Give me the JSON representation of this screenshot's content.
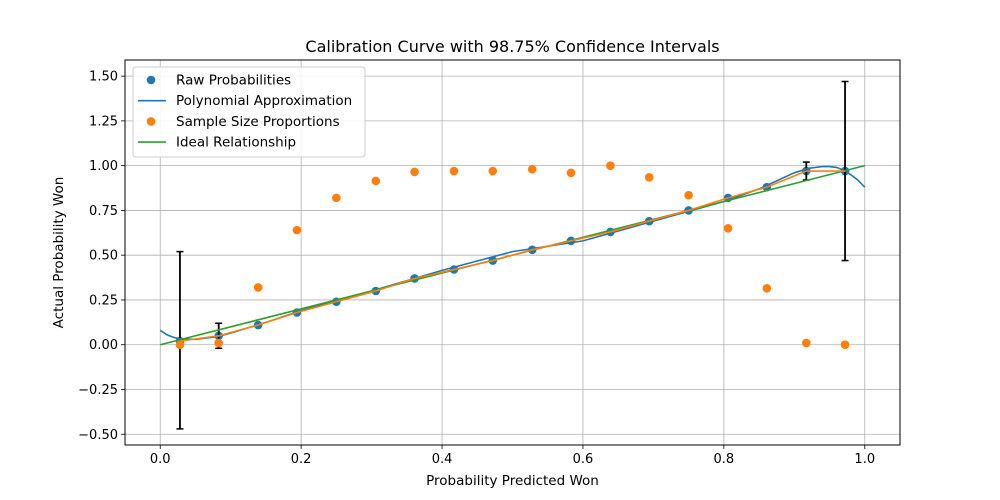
{
  "chart_data": {
    "type": "scatter",
    "title": "Calibration Curve with 98.75% Confidence Intervals",
    "xlabel": "Probability Predicted Won",
    "ylabel": "Actual Probability Won",
    "xlim": [
      -0.05,
      1.05
    ],
    "ylim": [
      -0.56,
      1.59
    ],
    "xticks": [
      0.0,
      0.2,
      0.4,
      0.6,
      0.8,
      1.0
    ],
    "xtick_labels": [
      "0.0",
      "0.2",
      "0.4",
      "0.6",
      "0.8",
      "1.0"
    ],
    "yticks": [
      -0.5,
      -0.25,
      0.0,
      0.25,
      0.5,
      0.75,
      1.0,
      1.25,
      1.5
    ],
    "ytick_labels": [
      "−0.50",
      "−0.25",
      "0.00",
      "0.25",
      "0.50",
      "0.75",
      "1.00",
      "1.25",
      "1.50"
    ],
    "grid": true,
    "legend_position": "top-left",
    "series": [
      {
        "name": "Raw Probabilities",
        "kind": "scatter",
        "color": "#1f77b4",
        "x": [
          0.028,
          0.083,
          0.139,
          0.194,
          0.25,
          0.306,
          0.361,
          0.417,
          0.472,
          0.528,
          0.583,
          0.639,
          0.694,
          0.75,
          0.806,
          0.861,
          0.917,
          0.972
        ],
        "y": [
          0.02,
          0.05,
          0.11,
          0.18,
          0.24,
          0.3,
          0.37,
          0.42,
          0.47,
          0.53,
          0.58,
          0.63,
          0.69,
          0.75,
          0.82,
          0.88,
          0.97,
          0.97
        ],
        "error_low": [
          -0.47,
          -0.02,
          null,
          null,
          null,
          null,
          null,
          null,
          null,
          null,
          null,
          null,
          null,
          null,
          null,
          null,
          0.92,
          0.47
        ],
        "error_high": [
          0.52,
          0.12,
          null,
          null,
          null,
          null,
          null,
          null,
          null,
          null,
          null,
          null,
          null,
          null,
          null,
          null,
          1.02,
          1.47
        ]
      },
      {
        "name": "Polynomial Approximation",
        "kind": "line",
        "color": "#1f77b4",
        "x": [
          0.0,
          0.01,
          0.02,
          0.03,
          0.05,
          0.08,
          0.1,
          0.15,
          0.2,
          0.3,
          0.4,
          0.5,
          0.6,
          0.7,
          0.8,
          0.85,
          0.9,
          0.92,
          0.94,
          0.95,
          0.96,
          0.97,
          0.98,
          0.99,
          1.0
        ],
        "y": [
          0.08,
          0.055,
          0.04,
          0.032,
          0.03,
          0.045,
          0.065,
          0.125,
          0.19,
          0.3,
          0.415,
          0.52,
          0.58,
          0.69,
          0.8,
          0.87,
          0.96,
          0.985,
          0.995,
          0.995,
          0.99,
          0.975,
          0.95,
          0.92,
          0.88
        ]
      },
      {
        "name": "Sample Size Proportions",
        "kind": "scatter",
        "color": "#ff7f0e",
        "x": [
          0.028,
          0.083,
          0.139,
          0.194,
          0.25,
          0.306,
          0.361,
          0.417,
          0.472,
          0.528,
          0.583,
          0.639,
          0.694,
          0.75,
          0.806,
          0.861,
          0.917,
          0.972
        ],
        "y": [
          0.0,
          0.01,
          0.32,
          0.64,
          0.82,
          0.915,
          0.965,
          0.97,
          0.97,
          0.98,
          0.96,
          1.0,
          0.935,
          0.835,
          0.65,
          0.315,
          0.01,
          0.0
        ]
      },
      {
        "name": "Ideal Relationship",
        "kind": "line",
        "color": "#2ca02c",
        "x": [
          0.0,
          1.0
        ],
        "y": [
          0.0,
          1.0
        ]
      },
      {
        "name": "",
        "kind": "line",
        "color": "#ff7f0e",
        "x": [
          0.028,
          0.083,
          0.139,
          0.194,
          0.25,
          0.306,
          0.361,
          0.417,
          0.472,
          0.528,
          0.583,
          0.639,
          0.694,
          0.75,
          0.806,
          0.861,
          0.917,
          0.972
        ],
        "y": [
          0.02,
          0.05,
          0.11,
          0.18,
          0.24,
          0.3,
          0.37,
          0.42,
          0.47,
          0.53,
          0.58,
          0.63,
          0.69,
          0.75,
          0.82,
          0.88,
          0.97,
          0.97
        ]
      }
    ]
  }
}
